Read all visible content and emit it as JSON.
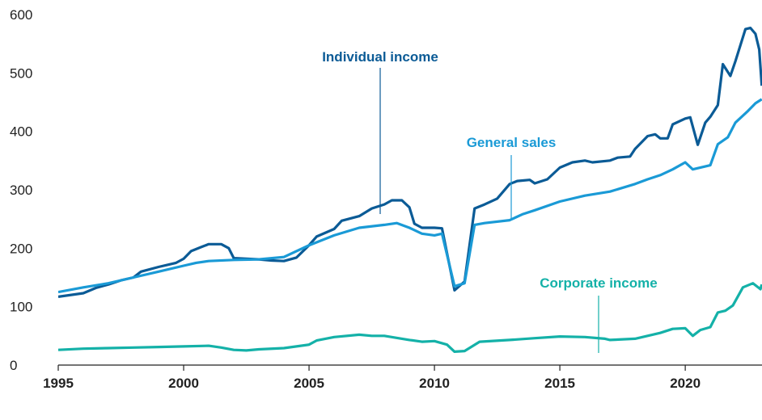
{
  "chart_data": {
    "type": "line",
    "xlim": [
      1995,
      2023.06
    ],
    "xticks": [
      1995,
      2000,
      2005,
      2010,
      2015,
      2020
    ],
    "ylim": [
      0,
      600
    ],
    "yticks": [
      0,
      100,
      200,
      300,
      400,
      500,
      600
    ],
    "series": [
      {
        "name": "Individual income",
        "color": "#0b5b96",
        "x": [
          1995,
          1996,
          1996.5,
          1997,
          1997.5,
          1998,
          1998.3,
          1999,
          1999.7,
          2000,
          2000.3,
          2000.7,
          2001,
          2001.5,
          2001.8,
          2002,
          2003,
          2003.5,
          2004,
          2004.5,
          2005,
          2005.3,
          2006,
          2006.3,
          2007,
          2007.5,
          2008,
          2008.3,
          2008.7,
          2009,
          2009.2,
          2009.5,
          2010,
          2010.3,
          2010.8,
          2011.2,
          2011.6,
          2012,
          2012.5,
          2013,
          2013.3,
          2013.8,
          2014,
          2014.5,
          2015,
          2015.5,
          2016,
          2016.3,
          2017,
          2017.3,
          2017.8,
          2018,
          2018.5,
          2018.8,
          2019,
          2019.3,
          2019.5,
          2020,
          2020.2,
          2020.5,
          2020.8,
          2021,
          2021.3,
          2021.5,
          2021.8,
          2022,
          2022.4,
          2022.6,
          2022.8,
          2022.95,
          2023.05
        ],
        "values": [
          117,
          123,
          132,
          138,
          145,
          150,
          160,
          168,
          175,
          182,
          195,
          202,
          207,
          207,
          200,
          183,
          181,
          179,
          178,
          184,
          205,
          220,
          233,
          247,
          255,
          268,
          275,
          282,
          282,
          270,
          242,
          235,
          235,
          234,
          128,
          143,
          268,
          275,
          285,
          310,
          315,
          317,
          311,
          318,
          338,
          347,
          350,
          347,
          350,
          355,
          357,
          370,
          392,
          395,
          388,
          388,
          412,
          422,
          424,
          377,
          415,
          425,
          445,
          515,
          495,
          520,
          575,
          577,
          567,
          540,
          478
        ]
      },
      {
        "name": "General sales",
        "color": "#1a9ad6",
        "x": [
          1995,
          1996,
          1997,
          1998,
          1999,
          2000,
          2000.5,
          2001,
          2002,
          2003,
          2004,
          2005,
          2006,
          2007,
          2008,
          2008.5,
          2009,
          2009.5,
          2010,
          2010.3,
          2010.8,
          2011.2,
          2011.6,
          2012,
          2013,
          2013.5,
          2014,
          2015,
          2016,
          2017,
          2018,
          2018.5,
          2019,
          2019.5,
          2020,
          2020.3,
          2021,
          2021.3,
          2021.7,
          2022,
          2022.5,
          2022.8,
          2023.05
        ],
        "values": [
          125,
          133,
          140,
          150,
          160,
          170,
          175,
          178,
          180,
          181,
          185,
          205,
          222,
          235,
          240,
          243,
          235,
          225,
          222,
          225,
          135,
          140,
          240,
          243,
          248,
          258,
          265,
          280,
          290,
          297,
          310,
          318,
          325,
          335,
          347,
          335,
          342,
          378,
          390,
          415,
          435,
          448,
          455
        ]
      },
      {
        "name": "Corporate income",
        "color": "#14b1a8",
        "x": [
          1995,
          1996,
          1997,
          1998,
          1999,
          2000,
          2001,
          2001.5,
          2002,
          2002.5,
          2003,
          2004,
          2005,
          2005.3,
          2006,
          2007,
          2007.5,
          2008,
          2009,
          2009.5,
          2010,
          2010.5,
          2010.8,
          2011.2,
          2011.8,
          2013,
          2014,
          2015,
          2016,
          2016.8,
          2017,
          2018,
          2018.5,
          2019,
          2019.5,
          2020,
          2020.3,
          2020.6,
          2021,
          2021.3,
          2021.6,
          2021.9,
          2022.3,
          2022.7,
          2023,
          2023.05
        ],
        "values": [
          26,
          28,
          29,
          30,
          31,
          32,
          33,
          30,
          26,
          25,
          27,
          29,
          35,
          42,
          48,
          52,
          50,
          50,
          43,
          40,
          41,
          35,
          23,
          24,
          40,
          43,
          46,
          49,
          48,
          45,
          43,
          45,
          50,
          55,
          62,
          63,
          50,
          60,
          65,
          90,
          93,
          102,
          133,
          140,
          130,
          138
        ]
      }
    ]
  }
}
